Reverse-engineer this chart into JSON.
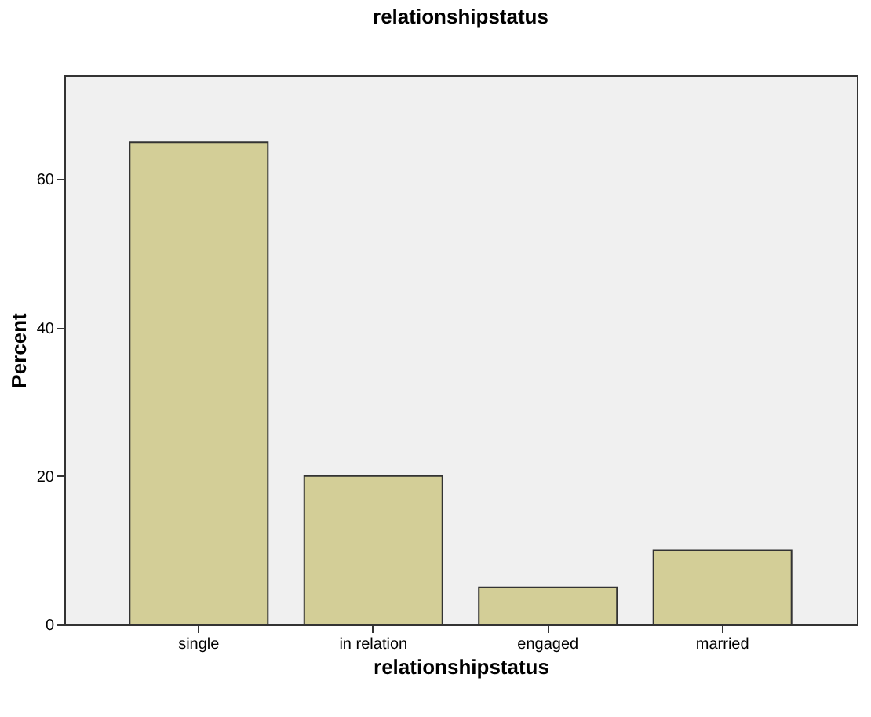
{
  "chart_data": {
    "type": "bar",
    "title": "relationshipstatus",
    "xlabel": "relationshipstatus",
    "ylabel": "Percent",
    "categories": [
      "single",
      "in relation",
      "engaged",
      "married"
    ],
    "values": [
      65,
      20,
      5,
      10
    ],
    "color": "#d3ce97",
    "ylim": [
      0,
      74
    ],
    "yticks": [
      0,
      20,
      40,
      60
    ],
    "grid": false
  }
}
